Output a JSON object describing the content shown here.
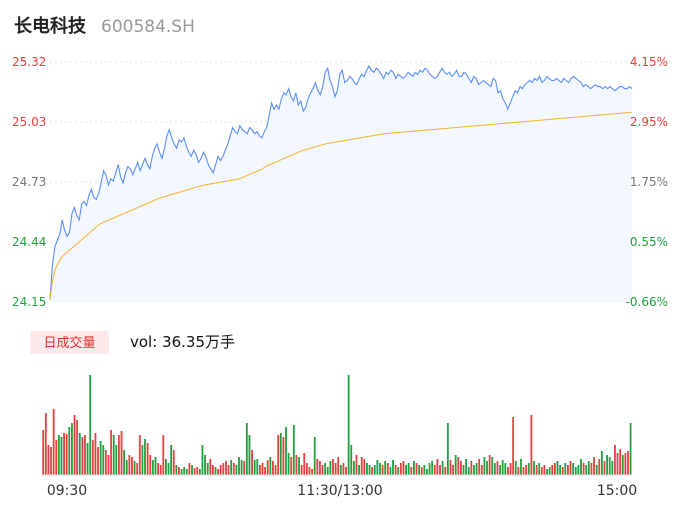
{
  "header": {
    "name": "长电科技",
    "code": "600584.SH"
  },
  "volume_panel": {
    "tab_label": "日成交量",
    "vol_text": "vol: 36.35万手"
  },
  "colors": {
    "price": "#5b8ff9",
    "avg": "#f6b83c",
    "up": "#e84040",
    "down": "#20a040",
    "area": "#f3f7ff",
    "grid": "#e6e6e6"
  },
  "chart_data": [
    {
      "type": "line",
      "title": "",
      "ylim": [
        24.15,
        25.32
      ],
      "y_ticks_left": [
        "25.32",
        "25.03",
        "24.73",
        "24.44",
        "24.15"
      ],
      "y_ticks_right": [
        "4.15%",
        "2.95%",
        "1.75%",
        "0.55%",
        "-0.66%"
      ],
      "x_ticks": [
        "09:30",
        "11:30/13:00",
        "15:00"
      ],
      "series": [
        {
          "name": "price",
          "values": [
            24.16,
            24.33,
            24.42,
            24.45,
            24.48,
            24.55,
            24.5,
            24.47,
            24.49,
            24.58,
            24.61,
            24.57,
            24.55,
            24.63,
            24.64,
            24.62,
            24.67,
            24.7,
            24.66,
            24.65,
            24.68,
            24.73,
            24.79,
            24.77,
            24.72,
            24.75,
            24.74,
            24.78,
            24.82,
            24.76,
            24.73,
            24.78,
            24.81,
            24.8,
            24.77,
            24.8,
            24.83,
            24.79,
            24.82,
            24.85,
            24.82,
            24.8,
            24.86,
            24.9,
            24.92,
            24.88,
            24.85,
            24.9,
            24.96,
            24.99,
            24.95,
            24.92,
            24.9,
            24.94,
            24.93,
            24.95,
            24.91,
            24.88,
            24.86,
            24.89,
            24.87,
            24.83,
            24.85,
            24.88,
            24.86,
            24.82,
            24.8,
            24.78,
            24.82,
            24.86,
            24.84,
            24.86,
            24.89,
            24.92,
            24.96,
            25.0,
            24.98,
            24.97,
            25.01,
            24.99,
            24.98,
            24.97,
            25.0,
            24.99,
            24.97,
            24.98,
            24.96,
            24.95,
            24.98,
            25.0,
            25.06,
            25.12,
            25.09,
            25.11,
            25.09,
            25.14,
            25.17,
            25.16,
            25.19,
            25.15,
            25.13,
            25.17,
            25.11,
            25.13,
            25.08,
            25.1,
            25.14,
            25.17,
            25.19,
            25.22,
            25.18,
            25.16,
            25.2,
            25.27,
            25.29,
            25.23,
            25.2,
            25.15,
            25.18,
            25.26,
            25.28,
            25.22,
            25.23,
            25.25,
            25.24,
            25.22,
            25.21,
            25.24,
            25.26,
            25.25,
            25.28,
            25.3,
            25.28,
            25.27,
            25.29,
            25.28,
            25.26,
            25.24,
            25.27,
            25.26,
            25.28,
            25.27,
            25.24,
            25.26,
            25.25,
            25.24,
            25.25,
            25.27,
            25.26,
            25.25,
            25.27,
            25.26,
            25.28,
            25.27,
            25.29,
            25.28,
            25.26,
            25.25,
            25.24,
            25.25,
            25.27,
            25.29,
            25.27,
            25.26,
            25.27,
            25.25,
            25.26,
            25.28,
            25.25,
            25.25,
            25.27,
            25.26,
            25.24,
            25.22,
            25.25,
            25.24,
            25.21,
            25.22,
            25.23,
            25.22,
            25.21,
            25.2,
            25.24,
            25.23,
            25.17,
            25.18,
            25.14,
            25.12,
            25.09,
            25.12,
            25.15,
            25.18,
            25.17,
            25.2,
            25.19,
            25.21,
            25.22,
            25.23,
            25.22,
            25.24,
            25.23,
            25.25,
            25.22,
            25.23,
            25.25,
            25.24,
            25.23,
            25.23,
            25.24,
            25.23,
            25.22,
            25.24,
            25.23,
            25.22,
            25.24,
            25.25,
            25.24,
            25.23,
            25.22,
            25.2,
            25.21,
            25.2,
            25.19,
            25.2,
            25.21,
            25.2,
            25.2,
            25.19,
            25.2,
            25.19,
            25.2,
            25.19,
            25.18,
            25.19,
            25.2,
            25.2,
            25.19,
            25.19,
            25.2,
            25.19
          ]
        },
        {
          "name": "avg",
          "values": [
            24.16,
            24.25,
            24.3,
            24.33,
            24.35,
            24.37,
            24.38,
            24.39,
            24.4,
            24.41,
            24.42,
            24.43,
            24.44,
            24.45,
            24.46,
            24.47,
            24.48,
            24.49,
            24.5,
            24.51,
            24.52,
            24.53,
            24.535,
            24.54,
            24.545,
            24.55,
            24.555,
            24.56,
            24.565,
            24.57,
            24.575,
            24.58,
            24.585,
            24.59,
            24.595,
            24.6,
            24.605,
            24.61,
            24.615,
            24.62,
            24.625,
            24.63,
            24.635,
            24.64,
            24.645,
            24.65,
            24.655,
            24.66,
            24.663,
            24.666,
            24.67,
            24.673,
            24.676,
            24.68,
            24.683,
            24.686,
            24.69,
            24.693,
            24.696,
            24.7,
            24.703,
            24.706,
            24.71,
            24.713,
            24.716,
            24.72,
            24.722,
            24.724,
            24.726,
            24.728,
            24.73,
            24.732,
            24.734,
            24.736,
            24.738,
            24.74,
            24.742,
            24.744,
            24.746,
            24.748,
            24.75,
            24.755,
            24.76,
            24.765,
            24.77,
            24.775,
            24.78,
            24.785,
            24.79,
            24.795,
            24.8,
            24.81,
            24.815,
            24.82,
            24.825,
            24.83,
            24.835,
            24.84,
            24.845,
            24.85,
            24.855,
            24.86,
            24.865,
            24.87,
            24.875,
            24.88,
            24.885,
            24.89,
            24.893,
            24.896,
            24.9,
            24.903,
            24.906,
            24.91,
            24.913,
            24.916,
            24.92,
            24.922,
            24.924,
            24.926,
            24.928,
            24.93,
            24.932,
            24.934,
            24.936,
            24.938,
            24.94,
            24.942,
            24.944,
            24.946,
            24.948,
            24.95,
            24.952,
            24.954,
            24.956,
            24.958,
            24.96,
            24.962,
            24.964,
            24.966,
            24.968,
            24.97,
            24.971,
            24.972,
            24.973,
            24.974,
            24.975,
            24.976,
            24.977,
            24.978,
            24.979,
            24.98,
            24.981,
            24.982,
            24.983,
            24.984,
            24.985,
            24.986,
            24.987,
            24.988,
            24.989,
            24.99,
            24.991,
            24.992,
            24.993,
            24.994,
            24.995,
            24.996,
            24.997,
            24.998,
            24.999,
            25.0,
            25.001,
            25.002,
            25.003,
            25.004,
            25.005,
            25.006,
            25.007,
            25.008,
            25.009,
            25.01,
            25.011,
            25.012,
            25.013,
            25.014,
            25.015,
            25.016,
            25.017,
            25.018,
            25.019,
            25.02,
            25.021,
            25.022,
            25.023,
            25.024,
            25.025,
            25.026,
            25.027,
            25.028,
            25.029,
            25.03,
            25.031,
            25.032,
            25.033,
            25.034,
            25.035,
            25.036,
            25.037,
            25.038,
            25.039,
            25.04,
            25.041,
            25.042,
            25.043,
            25.044,
            25.045,
            25.046,
            25.047,
            25.048,
            25.049,
            25.05,
            25.051,
            25.052,
            25.053,
            25.054,
            25.055,
            25.056,
            25.057,
            25.058,
            25.059,
            25.06,
            25.061,
            25.062,
            25.063,
            25.064,
            25.065,
            25.066,
            25.067,
            25.068,
            25.069,
            25.07,
            25.071,
            25.072,
            25.073,
            25.074,
            25.075
          ]
        }
      ]
    },
    {
      "type": "bar",
      "title": "",
      "x_ticks": [
        "09:30",
        "11:30/13:00",
        "15:00"
      ],
      "series": [
        {
          "name": "volume",
          "values": [
            45,
            62,
            30,
            28,
            66,
            35,
            40,
            38,
            42,
            41,
            48,
            52,
            60,
            55,
            42,
            38,
            40,
            32,
            100,
            35,
            42,
            28,
            34,
            30,
            25,
            20,
            45,
            40,
            30,
            40,
            44,
            25,
            15,
            20,
            18,
            14,
            12,
            40,
            30,
            36,
            32,
            20,
            15,
            18,
            12,
            10,
            40,
            16,
            12,
            30,
            25,
            10,
            8,
            6,
            8,
            6,
            12,
            10,
            7,
            8,
            6,
            30,
            20,
            12,
            16,
            10,
            8,
            6,
            10,
            12,
            14,
            10,
            15,
            12,
            10,
            18,
            15,
            14,
            52,
            40,
            25,
            15,
            16,
            10,
            12,
            8,
            15,
            18,
            14,
            10,
            40,
            42,
            38,
            48,
            22,
            18,
            50,
            20,
            18,
            10,
            22,
            12,
            8,
            6,
            38,
            16,
            14,
            10,
            12,
            8,
            14,
            16,
            12,
            18,
            10,
            12,
            8,
            100,
            30,
            14,
            20,
            10,
            18,
            16,
            12,
            10,
            8,
            10,
            15,
            12,
            10,
            14,
            12,
            8,
            15,
            10,
            8,
            12,
            14,
            10,
            12,
            8,
            14,
            12,
            10,
            8,
            10,
            6,
            12,
            14,
            10,
            16,
            10,
            14,
            8,
            52,
            15,
            10,
            20,
            18,
            14,
            10,
            16,
            8,
            14,
            10,
            12,
            16,
            10,
            18,
            14,
            20,
            18,
            12,
            14,
            10,
            15,
            12,
            8,
            12,
            58,
            14,
            8,
            16,
            8,
            10,
            12,
            60,
            14,
            10,
            12,
            8,
            10,
            6,
            8,
            10,
            12,
            14,
            10,
            8,
            12,
            10,
            14,
            12,
            8,
            10,
            16,
            12,
            10,
            14,
            12,
            18,
            10,
            16,
            24,
            14,
            20,
            18,
            14,
            30,
            22,
            26,
            20,
            22,
            24,
            52
          ]
        }
      ]
    }
  ]
}
